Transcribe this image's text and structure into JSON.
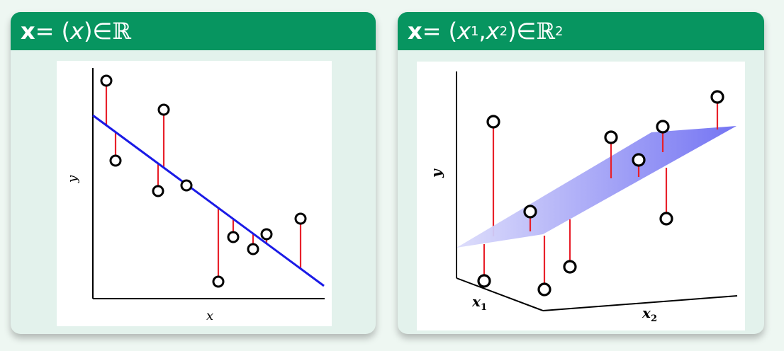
{
  "left_panel": {
    "title": {
      "bold_x": "x",
      "eq": " = (",
      "var": "x",
      "close": ")",
      "in": " ∈ ",
      "set": "ℝ"
    },
    "xlabel": "x",
    "ylabel": "y"
  },
  "right_panel": {
    "title": {
      "bold_x": "x",
      "eq": " = (",
      "x1": "x",
      "sub1": "1",
      "comma": ", ",
      "x2": "x",
      "sub2": "2",
      "close": ")",
      "in": " ∈ ",
      "set": "ℝ",
      "sup": "2"
    },
    "x1label": "x",
    "x1sub": "1",
    "x2label": "x",
    "x2sub": "2",
    "ylabel": "y"
  },
  "colors": {
    "header": "#079560",
    "regression_line": "#1a1ae6",
    "residual": "#e8202a",
    "point": "#000000",
    "plane": "#8f8ff5"
  }
}
